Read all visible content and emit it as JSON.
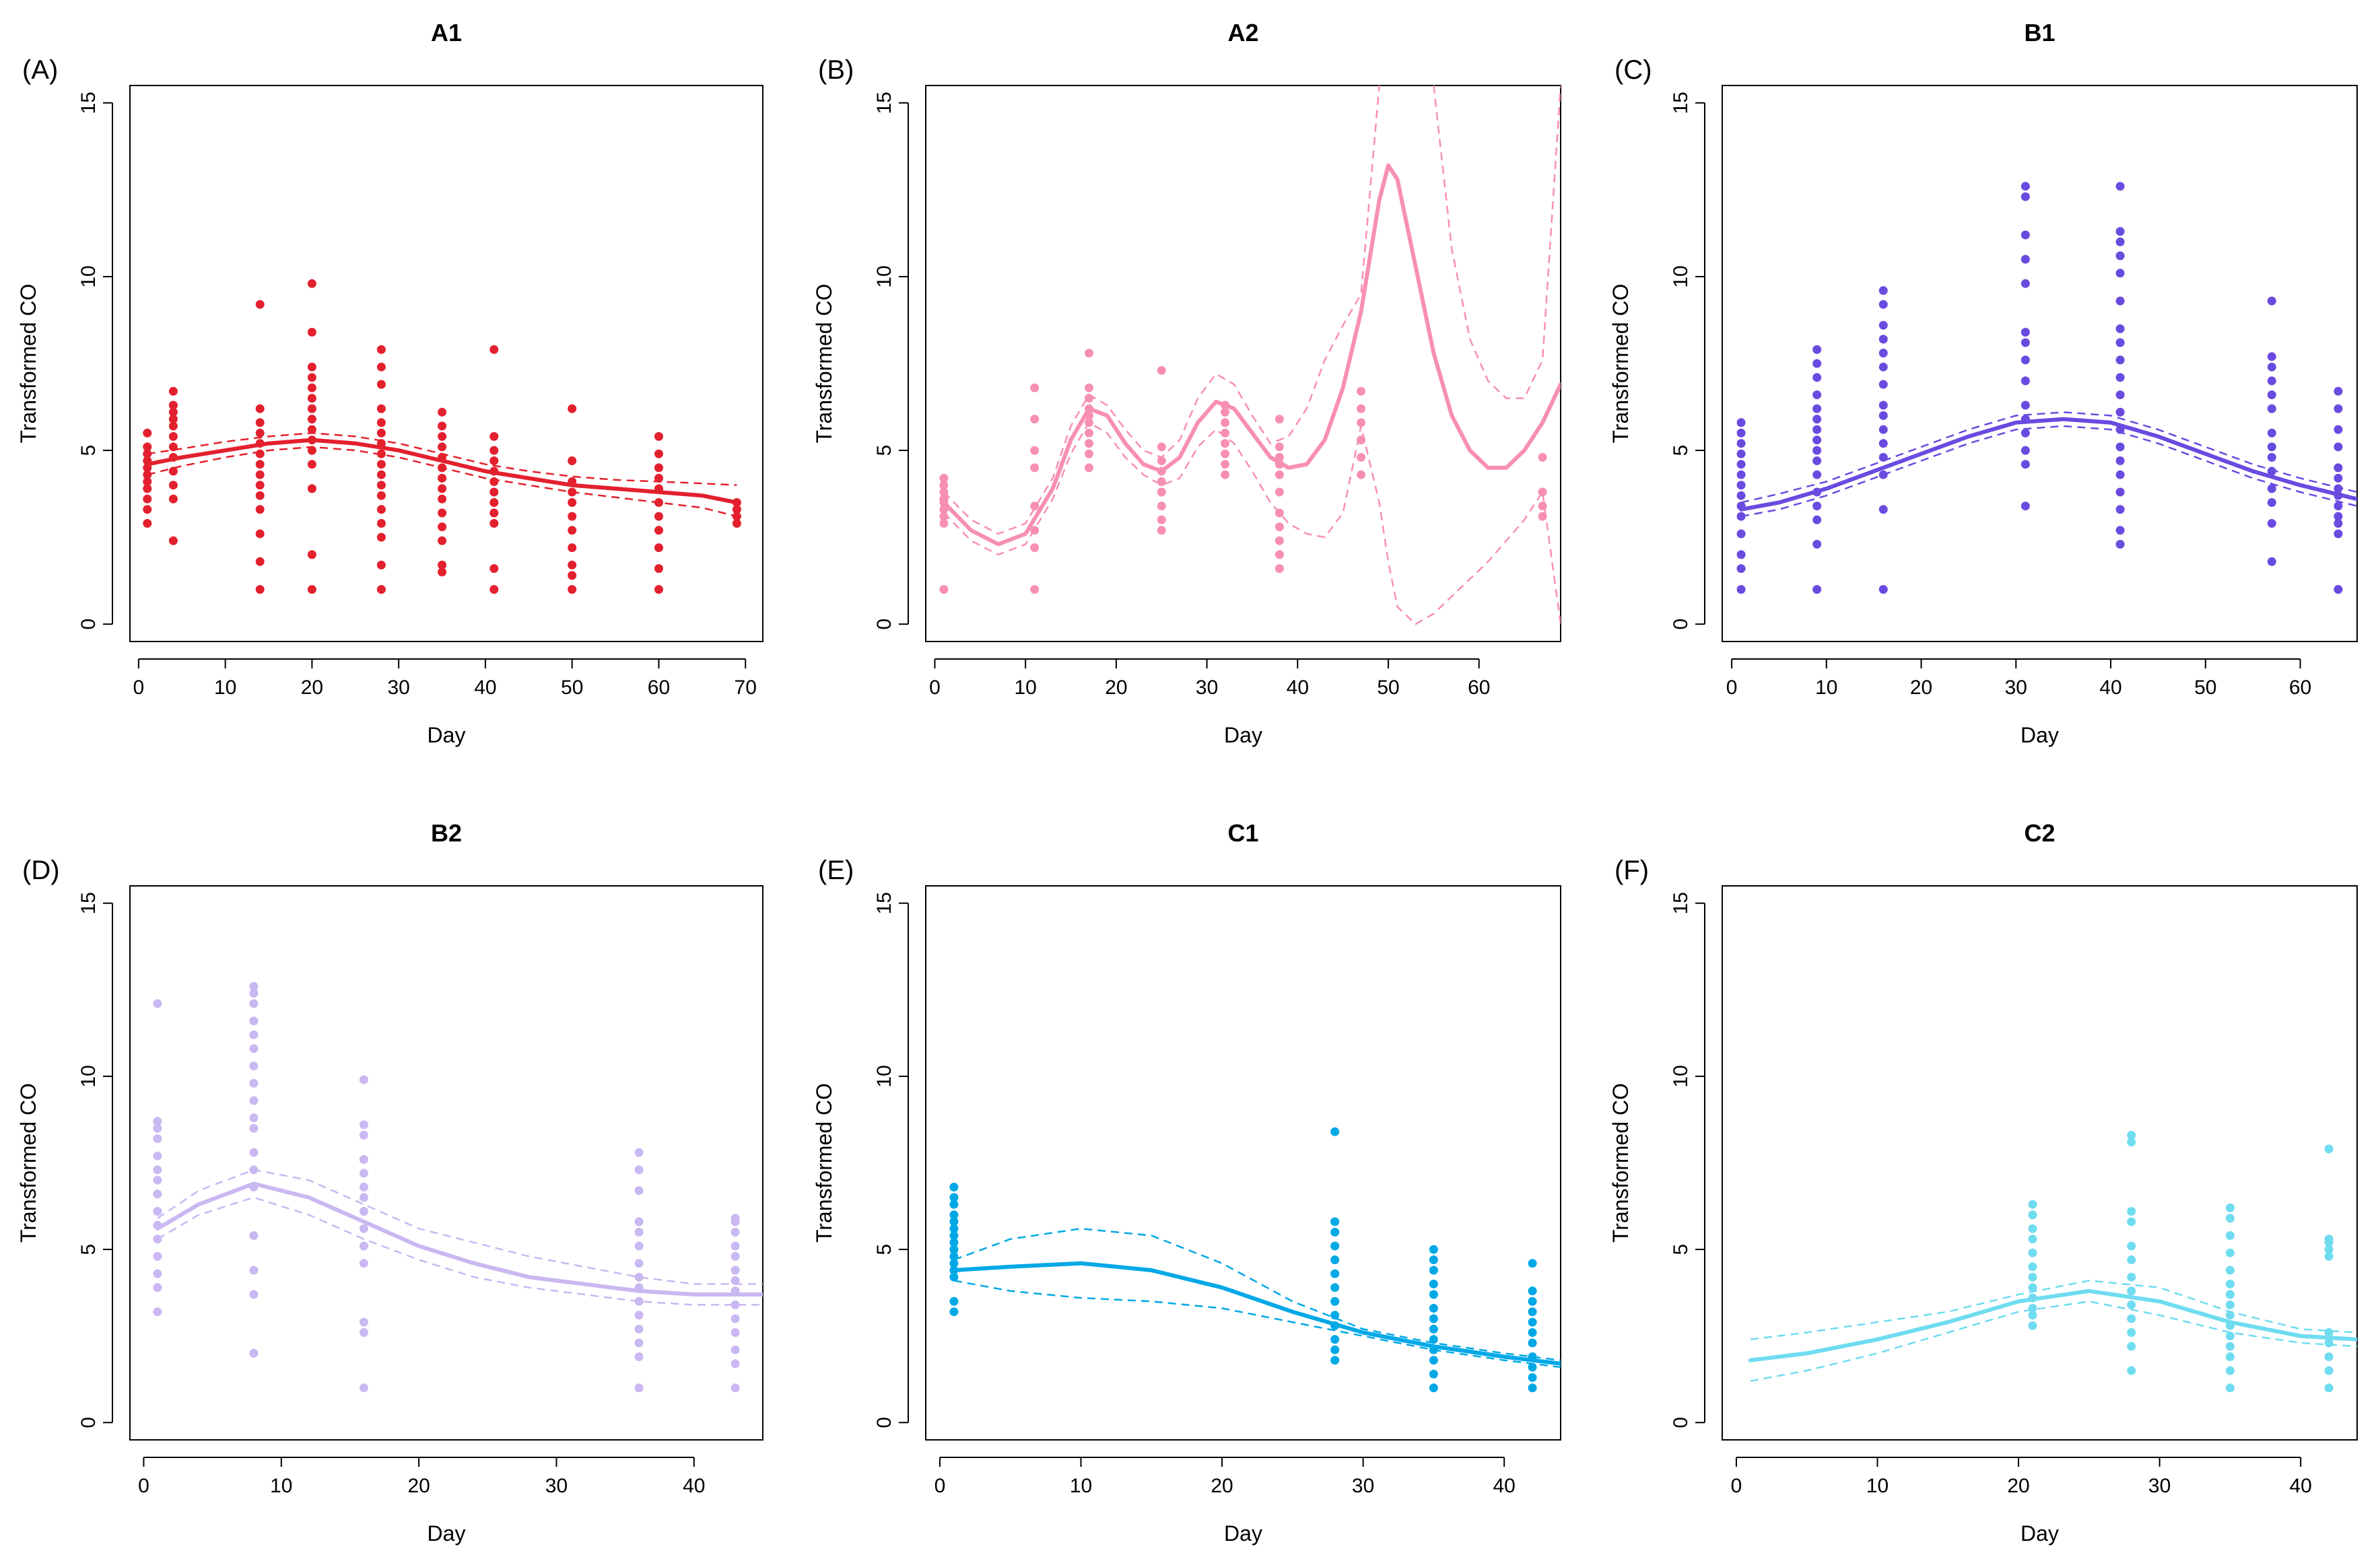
{
  "chart_data": [
    {
      "type": "scatter",
      "panel_label": "(A)",
      "title": "A1",
      "xlabel": "Day",
      "ylabel": "Transformed CO",
      "xlim": [
        -1,
        72
      ],
      "ylim": [
        -0.5,
        15.5
      ],
      "xticks": [
        0,
        10,
        20,
        30,
        40,
        50,
        60,
        70
      ],
      "yticks": [
        0,
        5,
        10,
        15
      ],
      "color": "#e3202e",
      "fit_x": [
        1,
        5,
        10,
        15,
        20,
        25,
        30,
        35,
        40,
        45,
        50,
        55,
        60,
        65,
        69
      ],
      "fit_y": [
        4.6,
        4.8,
        5.0,
        5.2,
        5.3,
        5.2,
        5.0,
        4.7,
        4.4,
        4.2,
        4.0,
        3.9,
        3.8,
        3.7,
        3.5
      ],
      "upper_y": [
        4.9,
        5.05,
        5.25,
        5.4,
        5.5,
        5.4,
        5.2,
        4.9,
        4.6,
        4.4,
        4.25,
        4.15,
        4.1,
        4.05,
        4.0
      ],
      "lower_y": [
        4.3,
        4.55,
        4.8,
        5.0,
        5.1,
        5.0,
        4.8,
        4.5,
        4.2,
        4.0,
        3.8,
        3.65,
        3.5,
        3.35,
        3.1
      ],
      "points": [
        [
          1,
          [
            2.9,
            3.3,
            3.6,
            3.9,
            4.1,
            4.3,
            4.5,
            4.7,
            4.9,
            5.1,
            5.5
          ]
        ],
        [
          4,
          [
            2.4,
            3.6,
            4.0,
            4.4,
            4.8,
            5.1,
            5.4,
            5.7,
            5.9,
            6.1,
            6.3,
            6.7
          ]
        ],
        [
          14,
          [
            1.0,
            1.8,
            2.6,
            3.3,
            3.7,
            4.0,
            4.3,
            4.6,
            4.9,
            5.2,
            5.5,
            5.8,
            6.2,
            9.2
          ]
        ],
        [
          20,
          [
            1.0,
            2.0,
            3.9,
            4.6,
            5.0,
            5.3,
            5.6,
            5.9,
            6.2,
            6.5,
            6.8,
            7.1,
            7.4,
            8.4,
            9.8
          ]
        ],
        [
          28,
          [
            1.0,
            1.7,
            2.5,
            2.9,
            3.3,
            3.7,
            4.0,
            4.3,
            4.6,
            4.9,
            5.2,
            5.5,
            5.8,
            6.2,
            6.9,
            7.4,
            7.9
          ]
        ],
        [
          35,
          [
            1.5,
            1.7,
            2.4,
            2.8,
            3.2,
            3.6,
            3.9,
            4.2,
            4.5,
            4.8,
            5.1,
            5.4,
            5.7,
            6.1
          ]
        ],
        [
          41,
          [
            1.0,
            1.6,
            2.9,
            3.2,
            3.5,
            3.8,
            4.1,
            4.4,
            4.7,
            5.0,
            5.4,
            7.9
          ]
        ],
        [
          50,
          [
            1.0,
            1.4,
            1.7,
            2.2,
            2.7,
            3.1,
            3.5,
            3.8,
            4.1,
            4.7,
            6.2
          ]
        ],
        [
          60,
          [
            1.0,
            1.6,
            2.2,
            2.7,
            3.1,
            3.5,
            3.9,
            4.2,
            4.5,
            4.9,
            5.4
          ]
        ],
        [
          69,
          [
            2.9,
            3.1,
            3.3,
            3.5
          ]
        ]
      ]
    },
    {
      "type": "scatter",
      "panel_label": "(B)",
      "title": "A2",
      "xlabel": "Day",
      "ylabel": "Transformed CO",
      "xlim": [
        -1,
        69
      ],
      "ylim": [
        -0.5,
        15.5
      ],
      "xticks": [
        0,
        10,
        20,
        30,
        40,
        50,
        60
      ],
      "yticks": [
        0,
        5,
        10,
        15
      ],
      "color": "#f78fb3",
      "fit_x": [
        1,
        4,
        7,
        10,
        13,
        15,
        17,
        19,
        21,
        23,
        25,
        27,
        29,
        31,
        33,
        35,
        37,
        39,
        41,
        43,
        45,
        47,
        49,
        50,
        51,
        53,
        55,
        57,
        59,
        61,
        63,
        65,
        67,
        69
      ],
      "fit_y": [
        3.5,
        2.7,
        2.3,
        2.6,
        3.9,
        5.3,
        6.2,
        6.0,
        5.2,
        4.6,
        4.4,
        4.8,
        5.8,
        6.4,
        6.2,
        5.5,
        4.8,
        4.5,
        4.6,
        5.3,
        6.8,
        9.0,
        12.2,
        13.2,
        12.8,
        10.3,
        7.8,
        6.0,
        5.0,
        4.5,
        4.5,
        5.0,
        5.8,
        6.9
      ],
      "upper_y": [
        3.8,
        3.0,
        2.6,
        2.9,
        4.2,
        5.7,
        6.6,
        6.3,
        5.6,
        5.0,
        4.8,
        5.3,
        6.5,
        7.2,
        6.9,
        6.0,
        5.2,
        5.4,
        6.2,
        7.6,
        8.6,
        9.5,
        15.5,
        null,
        null,
        null,
        15.5,
        10.8,
        8.2,
        7.0,
        6.5,
        6.5,
        7.6,
        15.5
      ],
      "lower_y": [
        3.2,
        2.4,
        2.0,
        2.3,
        3.6,
        4.9,
        5.8,
        5.5,
        4.8,
        4.3,
        4.0,
        4.2,
        5.1,
        5.6,
        5.2,
        4.4,
        3.5,
        2.9,
        2.6,
        2.5,
        3.2,
        5.7,
        3.5,
        1.8,
        0.5,
        0.0,
        0.3,
        0.8,
        1.3,
        1.8,
        2.4,
        3.0,
        3.8,
        0.0
      ],
      "points": [
        [
          1,
          [
            1.0,
            2.9,
            3.1,
            3.3,
            3.5,
            3.6,
            3.8,
            4.0,
            4.2
          ]
        ],
        [
          11,
          [
            1.0,
            2.2,
            2.7,
            3.4,
            4.5,
            5.0,
            5.9,
            6.8
          ]
        ],
        [
          17,
          [
            4.5,
            4.9,
            5.2,
            5.5,
            5.8,
            6.0,
            6.2,
            6.5,
            6.8,
            7.8
          ]
        ],
        [
          25,
          [
            2.7,
            3.0,
            3.4,
            3.8,
            4.1,
            4.4,
            4.7,
            5.1,
            7.3
          ]
        ],
        [
          32,
          [
            4.3,
            4.6,
            4.9,
            5.2,
            5.5,
            5.8,
            6.1,
            6.3
          ]
        ],
        [
          38,
          [
            1.6,
            2.0,
            2.4,
            2.8,
            3.2,
            3.8,
            4.3,
            4.6,
            4.8,
            5.1,
            5.9
          ]
        ],
        [
          47,
          [
            4.3,
            4.8,
            5.3,
            5.8,
            6.2,
            6.7
          ]
        ],
        [
          67,
          [
            3.1,
            3.4,
            3.8,
            4.8
          ]
        ]
      ]
    },
    {
      "type": "scatter",
      "panel_label": "(C)",
      "title": "B1",
      "xlabel": "Day",
      "ylabel": "Transformed CO",
      "xlim": [
        -1,
        66
      ],
      "ylim": [
        -0.5,
        15.5
      ],
      "xticks": [
        0,
        10,
        20,
        30,
        40,
        50,
        60
      ],
      "yticks": [
        0,
        5,
        10,
        15
      ],
      "color": "#6a4be0",
      "fit_x": [
        1,
        5,
        10,
        15,
        20,
        25,
        30,
        35,
        40,
        45,
        50,
        55,
        60,
        66
      ],
      "fit_y": [
        3.3,
        3.5,
        3.9,
        4.4,
        4.9,
        5.4,
        5.8,
        5.9,
        5.8,
        5.4,
        4.9,
        4.4,
        4.0,
        3.6
      ],
      "upper_y": [
        3.5,
        3.75,
        4.1,
        4.6,
        5.1,
        5.6,
        6.0,
        6.1,
        6.0,
        5.6,
        5.1,
        4.6,
        4.2,
        3.8
      ],
      "lower_y": [
        3.1,
        3.3,
        3.7,
        4.2,
        4.7,
        5.2,
        5.6,
        5.7,
        5.6,
        5.2,
        4.7,
        4.2,
        3.8,
        3.4
      ],
      "points": [
        [
          1,
          [
            1.0,
            1.6,
            2.0,
            2.6,
            3.1,
            3.4,
            3.7,
            4.0,
            4.3,
            4.6,
            4.9,
            5.2,
            5.5,
            5.8
          ]
        ],
        [
          9,
          [
            1.0,
            2.3,
            3.0,
            3.4,
            3.8,
            4.3,
            4.7,
            5.0,
            5.3,
            5.6,
            5.9,
            6.2,
            6.6,
            7.1,
            7.5,
            7.9
          ]
        ],
        [
          16,
          [
            1.0,
            3.3,
            4.3,
            4.8,
            5.2,
            5.6,
            6.0,
            6.3,
            6.9,
            7.4,
            7.8,
            8.2,
            8.6,
            9.2,
            9.6
          ]
        ],
        [
          31,
          [
            3.4,
            4.6,
            5.0,
            5.5,
            5.9,
            6.3,
            7.0,
            7.6,
            8.1,
            8.4,
            9.8,
            10.5,
            11.2,
            12.3,
            12.6
          ]
        ],
        [
          41,
          [
            2.3,
            2.7,
            3.3,
            3.8,
            4.3,
            4.7,
            5.1,
            5.6,
            6.1,
            6.6,
            7.1,
            7.6,
            8.1,
            8.5,
            9.3,
            10.1,
            10.6,
            11.0,
            11.3,
            12.6
          ]
        ],
        [
          57,
          [
            1.8,
            2.9,
            3.5,
            3.9,
            4.4,
            4.8,
            5.1,
            5.5,
            6.2,
            6.6,
            7.0,
            7.4,
            7.7,
            9.3
          ]
        ],
        [
          64,
          [
            1.0,
            2.6,
            2.9,
            3.1,
            3.4,
            3.7,
            3.9,
            4.2,
            4.5,
            5.1,
            5.6,
            6.2,
            6.7
          ]
        ]
      ]
    },
    {
      "type": "scatter",
      "panel_label": "(D)",
      "title": "B2",
      "xlabel": "Day",
      "ylabel": "Transformed CO",
      "xlim": [
        -1,
        45
      ],
      "ylim": [
        -0.5,
        15.5
      ],
      "xticks": [
        0,
        10,
        20,
        30,
        40
      ],
      "yticks": [
        0,
        5,
        10,
        15
      ],
      "color": "#c9b8f1",
      "fit_x": [
        1,
        4,
        8,
        12,
        16,
        20,
        24,
        28,
        32,
        36,
        40,
        45
      ],
      "fit_y": [
        5.6,
        6.3,
        6.9,
        6.5,
        5.8,
        5.1,
        4.6,
        4.2,
        4.0,
        3.8,
        3.7,
        3.7
      ],
      "upper_y": [
        5.9,
        6.7,
        7.3,
        7.0,
        6.3,
        5.6,
        5.2,
        4.8,
        4.5,
        4.2,
        4.0,
        4.0
      ],
      "lower_y": [
        5.3,
        6.0,
        6.5,
        6.0,
        5.3,
        4.7,
        4.2,
        3.9,
        3.7,
        3.5,
        3.4,
        3.4
      ],
      "points": [
        [
          1,
          [
            3.2,
            3.9,
            4.3,
            4.8,
            5.3,
            5.7,
            6.1,
            6.6,
            7.0,
            7.3,
            7.7,
            8.2,
            8.5,
            8.7,
            12.1
          ]
        ],
        [
          8,
          [
            2.0,
            3.7,
            4.4,
            5.4,
            6.8,
            7.3,
            7.8,
            8.5,
            8.8,
            9.3,
            9.8,
            10.3,
            10.8,
            11.2,
            11.6,
            12.1,
            12.4,
            12.6
          ]
        ],
        [
          16,
          [
            1.0,
            2.6,
            2.9,
            4.6,
            5.1,
            5.6,
            6.1,
            6.5,
            6.8,
            7.2,
            7.6,
            8.3,
            8.6,
            9.9
          ]
        ],
        [
          36,
          [
            1.0,
            1.9,
            2.3,
            2.7,
            3.1,
            3.5,
            3.9,
            4.2,
            4.6,
            5.1,
            5.5,
            5.8,
            6.7,
            7.3,
            7.8
          ]
        ],
        [
          43,
          [
            1.0,
            1.7,
            2.1,
            2.6,
            3.0,
            3.4,
            3.8,
            4.1,
            4.4,
            4.8,
            5.1,
            5.5,
            5.8,
            5.9
          ]
        ]
      ]
    },
    {
      "type": "scatter",
      "panel_label": "(E)",
      "title": "C1",
      "xlabel": "Day",
      "ylabel": "Transformed CO",
      "xlim": [
        -1,
        44
      ],
      "ylim": [
        -0.5,
        15.5
      ],
      "xticks": [
        0,
        10,
        20,
        30,
        40
      ],
      "yticks": [
        0,
        5,
        10,
        15
      ],
      "color": "#00a8e6",
      "fit_x": [
        1,
        5,
        10,
        15,
        20,
        25,
        30,
        35,
        40,
        44
      ],
      "fit_y": [
        4.4,
        4.5,
        4.6,
        4.4,
        3.9,
        3.2,
        2.6,
        2.2,
        1.9,
        1.7
      ],
      "upper_y": [
        4.7,
        5.3,
        5.6,
        5.4,
        4.6,
        3.5,
        2.7,
        2.3,
        2.0,
        1.8
      ],
      "lower_y": [
        4.1,
        3.8,
        3.6,
        3.5,
        3.3,
        2.9,
        2.5,
        2.1,
        1.8,
        1.6
      ],
      "points": [
        [
          1,
          [
            3.2,
            3.5,
            4.2,
            4.4,
            4.6,
            4.8,
            5.0,
            5.2,
            5.4,
            5.6,
            5.8,
            6.0,
            6.3,
            6.5,
            6.8
          ]
        ],
        [
          28,
          [
            1.8,
            2.1,
            2.4,
            2.8,
            3.1,
            3.5,
            3.9,
            4.3,
            4.7,
            5.1,
            5.5,
            5.8,
            8.4
          ]
        ],
        [
          35,
          [
            1.0,
            1.4,
            1.8,
            2.1,
            2.4,
            2.7,
            3.0,
            3.3,
            3.7,
            4.0,
            4.4,
            4.7,
            5.0
          ]
        ],
        [
          42,
          [
            1.0,
            1.3,
            1.6,
            1.9,
            2.3,
            2.6,
            2.9,
            3.2,
            3.5,
            3.8,
            4.6
          ]
        ]
      ]
    },
    {
      "type": "scatter",
      "panel_label": "(F)",
      "title": "C2",
      "xlabel": "Day",
      "ylabel": "Transformed CO",
      "xlim": [
        -1,
        44
      ],
      "ylim": [
        -0.5,
        15.5
      ],
      "xticks": [
        0,
        10,
        20,
        30,
        40
      ],
      "yticks": [
        0,
        5,
        10,
        15
      ],
      "color": "#6fdcf0",
      "fit_x": [
        1,
        5,
        10,
        15,
        20,
        25,
        30,
        35,
        40,
        44
      ],
      "fit_y": [
        1.8,
        2.0,
        2.4,
        2.9,
        3.5,
        3.8,
        3.5,
        2.9,
        2.5,
        2.4
      ],
      "upper_y": [
        2.4,
        2.6,
        2.9,
        3.2,
        3.7,
        4.1,
        3.9,
        3.2,
        2.7,
        2.6
      ],
      "lower_y": [
        1.2,
        1.5,
        2.0,
        2.6,
        3.2,
        3.5,
        3.1,
        2.6,
        2.3,
        2.2
      ],
      "points": [
        [
          21,
          [
            2.8,
            3.1,
            3.3,
            3.6,
            3.9,
            4.2,
            4.5,
            4.9,
            5.3,
            5.6,
            6.0,
            6.3
          ]
        ],
        [
          28,
          [
            1.5,
            2.2,
            2.6,
            3.0,
            3.4,
            3.8,
            4.2,
            4.7,
            5.1,
            5.8,
            6.1,
            8.1,
            8.3
          ]
        ],
        [
          35,
          [
            1.0,
            1.5,
            1.9,
            2.2,
            2.5,
            2.8,
            3.1,
            3.4,
            3.7,
            4.0,
            4.4,
            4.9,
            5.4,
            5.9,
            6.2
          ]
        ],
        [
          42,
          [
            1.0,
            1.5,
            1.9,
            2.3,
            2.6,
            4.8,
            5.0,
            5.2,
            5.3,
            7.9
          ]
        ]
      ]
    }
  ]
}
